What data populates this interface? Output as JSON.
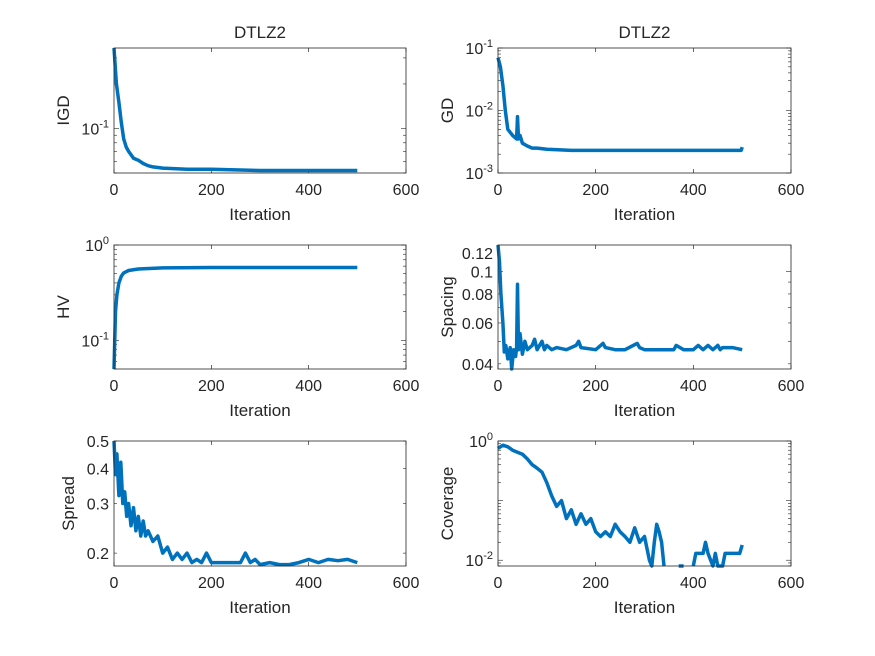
{
  "chart_data": [
    {
      "type": "line",
      "title": "DTLZ2",
      "xlabel": "Iteration",
      "ylabel": "IGD",
      "xlim": [
        0,
        600
      ],
      "ylim": [
        0.05,
        0.35
      ],
      "yscale": "log",
      "xticks": [
        0,
        200,
        400,
        600
      ],
      "yticks": [
        {
          "value": 0.1,
          "base": "10",
          "exp": "-1"
        }
      ],
      "color": "#0072BD",
      "series": [
        {
          "x": [
            0,
            5,
            10,
            15,
            20,
            25,
            30,
            40,
            50,
            60,
            70,
            80,
            100,
            150,
            200,
            300,
            400,
            500
          ],
          "y": [
            0.35,
            0.2,
            0.15,
            0.11,
            0.085,
            0.075,
            0.07,
            0.063,
            0.061,
            0.058,
            0.056,
            0.055,
            0.054,
            0.053,
            0.053,
            0.052,
            0.052,
            0.052
          ]
        }
      ]
    },
    {
      "type": "line",
      "title": "DTLZ2",
      "xlabel": "Iteration",
      "ylabel": "GD",
      "xlim": [
        0,
        600
      ],
      "ylim": [
        0.001,
        0.1
      ],
      "yscale": "log",
      "xticks": [
        0,
        200,
        400,
        600
      ],
      "yticks": [
        {
          "value": 0.001,
          "base": "10",
          "exp": "-3"
        },
        {
          "value": 0.01,
          "base": "10",
          "exp": "-2"
        },
        {
          "value": 0.1,
          "base": "10",
          "exp": "-1"
        }
      ],
      "color": "#0072BD",
      "series": [
        {
          "x": [
            0,
            5,
            10,
            15,
            20,
            30,
            38,
            40,
            42,
            45,
            50,
            60,
            70,
            80,
            100,
            150,
            200,
            300,
            400,
            498,
            500
          ],
          "y": [
            0.07,
            0.05,
            0.025,
            0.01,
            0.005,
            0.004,
            0.0035,
            0.008,
            0.0035,
            0.004,
            0.003,
            0.0027,
            0.0025,
            0.0025,
            0.0024,
            0.0023,
            0.0023,
            0.0023,
            0.0023,
            0.0023,
            0.0026
          ]
        }
      ]
    },
    {
      "type": "line",
      "title": "",
      "xlabel": "Iteration",
      "ylabel": "HV",
      "xlim": [
        0,
        600
      ],
      "ylim": [
        0.05,
        1
      ],
      "yscale": "log",
      "xticks": [
        0,
        200,
        400,
        600
      ],
      "yticks": [
        {
          "value": 0.1,
          "base": "10",
          "exp": "-1"
        },
        {
          "value": 1,
          "base": "10",
          "exp": "0"
        }
      ],
      "color": "#0072BD",
      "series": [
        {
          "x": [
            0,
            3,
            6,
            10,
            15,
            20,
            30,
            50,
            100,
            200,
            300,
            400,
            500
          ],
          "y": [
            0.05,
            0.2,
            0.3,
            0.4,
            0.47,
            0.51,
            0.54,
            0.56,
            0.575,
            0.58,
            0.58,
            0.58,
            0.58
          ]
        }
      ]
    },
    {
      "type": "line",
      "title": "",
      "xlabel": "Iteration",
      "ylabel": "Spacing",
      "xlim": [
        0,
        600
      ],
      "ylim": [
        0.038,
        0.13
      ],
      "yscale": "log",
      "xticks": [
        0,
        200,
        400,
        600
      ],
      "yticks": [
        {
          "value": 0.04,
          "label": "0.04"
        },
        {
          "value": 0.06,
          "label": "0.06"
        },
        {
          "value": 0.08,
          "label": "0.08"
        },
        {
          "value": 0.1,
          "label": "0.1"
        },
        {
          "value": 0.12,
          "label": "0.12"
        }
      ],
      "color": "#0072BD",
      "series": [
        {
          "x": [
            0,
            3,
            6,
            10,
            13,
            16,
            20,
            25,
            28,
            32,
            36,
            38,
            40,
            42,
            45,
            50,
            55,
            60,
            70,
            75,
            80,
            90,
            95,
            100,
            110,
            120,
            140,
            160,
            165,
            170,
            200,
            215,
            220,
            240,
            260,
            285,
            290,
            300,
            320,
            360,
            365,
            380,
            400,
            410,
            420,
            430,
            440,
            450,
            455,
            460,
            470,
            480,
            500
          ],
          "y": [
            0.13,
            0.11,
            0.08,
            0.06,
            0.045,
            0.048,
            0.042,
            0.047,
            0.038,
            0.046,
            0.043,
            0.047,
            0.088,
            0.046,
            0.054,
            0.044,
            0.05,
            0.046,
            0.048,
            0.051,
            0.046,
            0.05,
            0.046,
            0.048,
            0.046,
            0.047,
            0.046,
            0.048,
            0.05,
            0.047,
            0.046,
            0.049,
            0.047,
            0.046,
            0.046,
            0.049,
            0.047,
            0.046,
            0.046,
            0.046,
            0.048,
            0.046,
            0.046,
            0.048,
            0.046,
            0.048,
            0.046,
            0.048,
            0.046,
            0.047,
            0.047,
            0.047,
            0.046
          ]
        }
      ]
    },
    {
      "type": "line",
      "title": "",
      "xlabel": "Iteration",
      "ylabel": "Spread",
      "xlim": [
        0,
        600
      ],
      "ylim": [
        0.18,
        0.5
      ],
      "yscale": "log",
      "xticks": [
        0,
        200,
        400,
        600
      ],
      "yticks": [
        {
          "value": 0.2,
          "label": "0.2"
        },
        {
          "value": 0.3,
          "label": "0.3"
        },
        {
          "value": 0.4,
          "label": "0.4"
        },
        {
          "value": 0.5,
          "label": "0.5"
        }
      ],
      "color": "#0072BD",
      "series": [
        {
          "x": [
            0,
            3,
            6,
            10,
            14,
            18,
            22,
            26,
            30,
            35,
            40,
            45,
            50,
            55,
            60,
            65,
            70,
            80,
            90,
            100,
            110,
            120,
            130,
            140,
            150,
            160,
            170,
            180,
            190,
            200,
            220,
            240,
            260,
            270,
            280,
            290,
            300,
            320,
            340,
            360,
            380,
            400,
            420,
            440,
            460,
            480,
            500
          ],
          "y": [
            0.5,
            0.38,
            0.45,
            0.32,
            0.42,
            0.3,
            0.33,
            0.27,
            0.3,
            0.25,
            0.29,
            0.24,
            0.27,
            0.23,
            0.26,
            0.23,
            0.24,
            0.22,
            0.23,
            0.2,
            0.21,
            0.19,
            0.2,
            0.19,
            0.2,
            0.185,
            0.19,
            0.185,
            0.2,
            0.185,
            0.185,
            0.185,
            0.185,
            0.2,
            0.185,
            0.19,
            0.182,
            0.185,
            0.182,
            0.182,
            0.185,
            0.19,
            0.185,
            0.19,
            0.188,
            0.19,
            0.185
          ]
        }
      ]
    },
    {
      "type": "line",
      "title": "",
      "xlabel": "Iteration",
      "ylabel": "Coverage",
      "xlim": [
        0,
        600
      ],
      "ylim": [
        0.008,
        1
      ],
      "yscale": "log",
      "xticks": [
        0,
        200,
        400,
        600
      ],
      "yticks": [
        {
          "value": 0.01,
          "base": "10",
          "exp": "-2"
        },
        {
          "value": 1,
          "base": "10",
          "exp": "0"
        }
      ],
      "color": "#0072BD",
      "series": [
        {
          "x": [
            0,
            10,
            20,
            30,
            40,
            50,
            60,
            70,
            80,
            90,
            100,
            110,
            120,
            130,
            140,
            150,
            160,
            170,
            180,
            190,
            200,
            210,
            220,
            230,
            240,
            250,
            260,
            270,
            280,
            290,
            300,
            310,
            315,
            320,
            325,
            330,
            335,
            340,
            355,
            370,
            380,
            390,
            400,
            405,
            420,
            425,
            430,
            440,
            445,
            450,
            460,
            465,
            495,
            500
          ],
          "y": [
            0.75,
            0.85,
            0.8,
            0.7,
            0.65,
            0.6,
            0.5,
            0.4,
            0.35,
            0.3,
            0.2,
            0.12,
            0.08,
            0.1,
            0.05,
            0.07,
            0.04,
            0.06,
            0.04,
            0.05,
            0.03,
            0.025,
            0.03,
            0.025,
            0.04,
            0.03,
            0.025,
            0.02,
            0.035,
            0.02,
            0.025,
            0.01,
            0.008,
            0.02,
            0.04,
            0.03,
            0.02,
            0.008,
            null,
            0.008,
            0.008,
            null,
            0.008,
            0.013,
            0.013,
            0.02,
            0.013,
            0.008,
            0.013,
            0.008,
            0.008,
            0.013,
            0.013,
            0.018
          ]
        }
      ]
    }
  ]
}
